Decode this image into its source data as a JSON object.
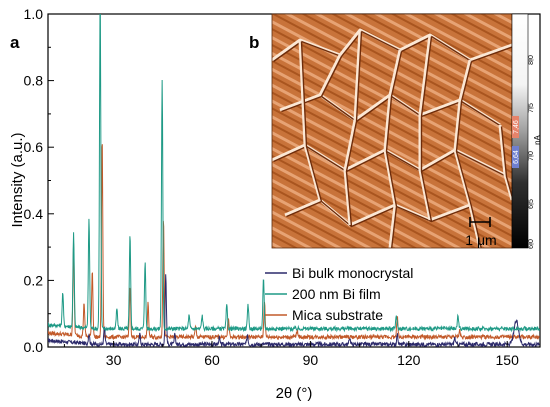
{
  "chart_data": {
    "type": "line",
    "panel_labels": [
      "a",
      "b"
    ],
    "xlabel": "2θ (°)",
    "ylabel": "Intensity (a.u.)",
    "xlim": [
      10,
      160
    ],
    "ylim": [
      0,
      1.0
    ],
    "x_ticks": [
      30,
      60,
      90,
      120,
      150
    ],
    "y_ticks": [
      0.0,
      0.2,
      0.4,
      0.6,
      0.8,
      1.0
    ],
    "grid": false,
    "legend_position": "lower-right",
    "series": [
      {
        "name": "Bi bulk monocrystal",
        "color": "#2c2a6b",
        "baseline": 0.008,
        "peaks": [
          [
            22.5,
            0.03
          ],
          [
            27.2,
            0.05
          ],
          [
            38.0,
            0.03
          ],
          [
            45.9,
            0.21
          ],
          [
            48.7,
            0.03
          ],
          [
            62.2,
            0.02
          ],
          [
            70.8,
            0.03
          ],
          [
            102.0,
            0.02
          ],
          [
            116.5,
            0.03
          ],
          [
            134.0,
            0.02
          ],
          [
            152.8,
            0.07
          ]
        ]
      },
      {
        "name": "200 nm Bi film",
        "color": "#1f9a86",
        "baseline": 0.055,
        "peaks": [
          [
            14.5,
            0.1
          ],
          [
            17.8,
            0.28
          ],
          [
            22.5,
            0.33
          ],
          [
            25.9,
            1.0
          ],
          [
            31.0,
            0.06
          ],
          [
            35.0,
            0.28
          ],
          [
            39.6,
            0.2
          ],
          [
            44.8,
            0.75
          ],
          [
            53.0,
            0.04
          ],
          [
            57.0,
            0.04
          ],
          [
            64.5,
            0.07
          ],
          [
            71.0,
            0.07
          ],
          [
            75.7,
            0.15
          ],
          [
            116.2,
            0.04
          ],
          [
            135.0,
            0.04
          ]
        ]
      },
      {
        "name": "Mica substrate",
        "color": "#c25a2a",
        "baseline": 0.03,
        "peaks": [
          [
            17.8,
            0.27
          ],
          [
            21.0,
            0.1
          ],
          [
            23.5,
            0.2
          ],
          [
            26.5,
            0.6
          ],
          [
            35.0,
            0.15
          ],
          [
            40.5,
            0.1
          ],
          [
            45.2,
            0.36
          ],
          [
            55.0,
            0.03
          ],
          [
            65.0,
            0.06
          ],
          [
            76.0,
            0.11
          ],
          [
            86.0,
            0.02
          ],
          [
            116.5,
            0.06
          ],
          [
            135.5,
            0.02
          ]
        ]
      }
    ]
  },
  "inset": {
    "scale_bar_label": "1 μm",
    "colorbar_ticks": [
      "8,0",
      "7,5",
      "7,0",
      "6,5",
      "6,0"
    ],
    "colorbar_unit": "nA",
    "colorbar_markers": [
      "7,46",
      "6,64"
    ],
    "colors": {
      "dark": "#8a3a12",
      "mid": "#c8733a",
      "light": "#f2c39a",
      "highlight": "#fbe7d4"
    }
  }
}
